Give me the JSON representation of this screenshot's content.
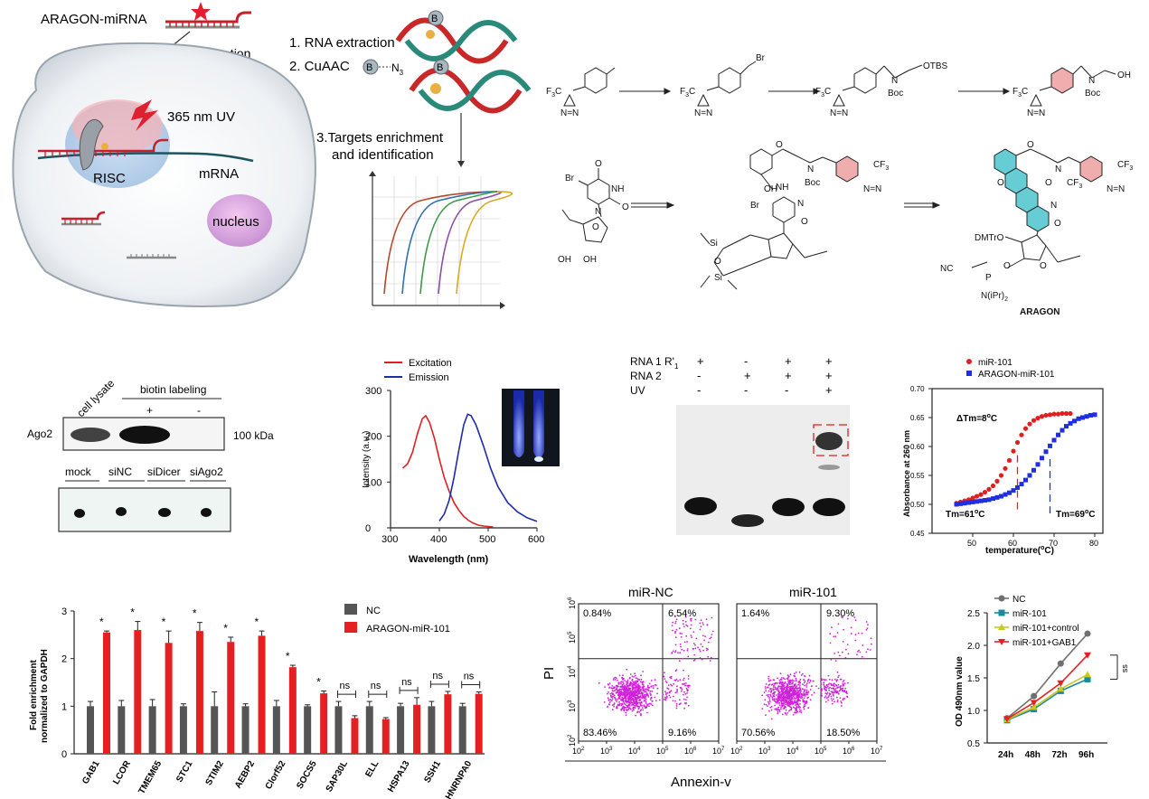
{
  "schematic": {
    "miRNA_label": "ARAGON-miRNA",
    "transfection": "transfection",
    "uv": "365 nm UV",
    "risc": "RISC",
    "mrna": "mRNA",
    "nucleus": "nucleus",
    "biotin_badge": "B",
    "step1": "1. RNA extraction",
    "step2": "2. CuAAC",
    "azide": "N",
    "azide_sub": "3",
    "step3a": "3.Targets enrichment",
    "step3b": "and identification",
    "curve_colors": [
      "#b5482a",
      "#2f6fb0",
      "#3c9a4a",
      "#8a4fa0",
      "#d9a821"
    ]
  },
  "chemistry": {
    "f3c": "F",
    "f3c_sub": "3",
    "f3c_c": "C",
    "cf": "CF",
    "cf_sub": "3",
    "br": "Br",
    "otbs": "OTBS",
    "boc": "Boc",
    "oh": "OH",
    "nh": "NH",
    "n": "N",
    "o": "O",
    "si": "Si",
    "dmtro": "DMTrO",
    "nc": "NC",
    "p": "P",
    "niPr": "N(iPr)",
    "niPr_sub": "2",
    "final_label": "ARAGON",
    "highlight_pink": "#e88a8a",
    "highlight_cyan": "#3fc0c8"
  },
  "blot": {
    "lane_cell_lysate": "cell lysate",
    "biotin_labeling": "biotin labeling",
    "plus": "+",
    "minus": "-",
    "ago2": "Ago2",
    "kda": "100 kDa",
    "lanes2": [
      "mock",
      "siNC",
      "siDicer",
      "siAgo2"
    ]
  },
  "spectra": {
    "chart_data": {
      "type": "line",
      "xlabel": "Wavelength (nm)",
      "ylabel": "Intensity (a.u.)",
      "xlim": [
        300,
        600
      ],
      "ylim": [
        0,
        300
      ],
      "xticks": [
        300,
        400,
        500,
        600
      ],
      "yticks": [
        0,
        100,
        200,
        300
      ],
      "legend": "top-left",
      "series": [
        {
          "name": "Excitation",
          "color": "#e02020",
          "x": [
            325,
            335,
            345,
            355,
            365,
            372,
            380,
            390,
            400,
            410,
            420,
            430,
            440,
            450,
            460,
            470,
            480,
            490,
            500,
            510
          ],
          "y": [
            130,
            140,
            165,
            205,
            238,
            245,
            230,
            195,
            150,
            110,
            80,
            55,
            38,
            25,
            16,
            10,
            6,
            4,
            3,
            2
          ]
        },
        {
          "name": "Emission",
          "color": "#1e2ea8",
          "x": [
            400,
            410,
            420,
            430,
            440,
            450,
            458,
            465,
            475,
            490,
            505,
            520,
            540,
            560,
            580,
            600
          ],
          "y": [
            15,
            30,
            60,
            110,
            170,
            225,
            248,
            245,
            225,
            180,
            130,
            90,
            55,
            35,
            22,
            14
          ]
        }
      ]
    }
  },
  "gel": {
    "rows": [
      {
        "label": "RNA 1 R'",
        "sub": "1",
        "vals": [
          "+",
          "-",
          "+",
          "+"
        ]
      },
      {
        "label": "RNA 2",
        "sub": "",
        "vals": [
          "-",
          "+",
          "+",
          "+"
        ]
      },
      {
        "label": "UV",
        "sub": "",
        "vals": [
          "-",
          "-",
          "-",
          "+"
        ]
      }
    ]
  },
  "melting": {
    "chart_data": {
      "type": "scatter",
      "xlabel": "temperature(",
      "xlabel_sup": "o",
      "xlabel_end": "C)",
      "ylabel": "Absorbance at 260 nm",
      "xlim": [
        40,
        82
      ],
      "ylim": [
        0.45,
        0.7
      ],
      "xticks": [
        50,
        60,
        70,
        80
      ],
      "yticks": [
        "0.45",
        "0.50",
        "0.55",
        "0.60",
        "0.65",
        "0.70"
      ],
      "legend": "top",
      "series": [
        {
          "name": "miR-101",
          "color": "#e02020",
          "tm": 61,
          "x": [
            46,
            47,
            48,
            49,
            50,
            51,
            52,
            53,
            54,
            55,
            56,
            57,
            58,
            59,
            60,
            61,
            62,
            63,
            64,
            65,
            66,
            67,
            68,
            69,
            70,
            71,
            72,
            73,
            74
          ],
          "y": [
            0.502,
            0.504,
            0.506,
            0.508,
            0.511,
            0.514,
            0.517,
            0.521,
            0.526,
            0.532,
            0.54,
            0.55,
            0.562,
            0.576,
            0.592,
            0.607,
            0.62,
            0.631,
            0.639,
            0.645,
            0.649,
            0.652,
            0.654,
            0.655,
            0.656,
            0.656,
            0.657,
            0.657,
            0.657
          ]
        },
        {
          "name": "ARAGON-miR-101",
          "color": "#1e2ee0",
          "tm": 69,
          "x": [
            46,
            47,
            48,
            49,
            50,
            51,
            52,
            53,
            54,
            55,
            56,
            57,
            58,
            59,
            60,
            61,
            62,
            63,
            64,
            65,
            66,
            67,
            68,
            69,
            70,
            71,
            72,
            73,
            74,
            75,
            76,
            77,
            78,
            79,
            80
          ],
          "y": [
            0.5,
            0.501,
            0.502,
            0.503,
            0.504,
            0.505,
            0.506,
            0.507,
            0.508,
            0.51,
            0.512,
            0.514,
            0.517,
            0.52,
            0.524,
            0.529,
            0.535,
            0.542,
            0.55,
            0.559,
            0.569,
            0.58,
            0.591,
            0.601,
            0.611,
            0.62,
            0.628,
            0.635,
            0.64,
            0.644,
            0.648,
            0.65,
            0.652,
            0.654,
            0.655
          ]
        }
      ],
      "annotations": {
        "dtm": "ΔTm=8",
        "dtm_end": "C",
        "tm1": "Tm=61",
        "tm1_end": "C",
        "tm2": "Tm=69",
        "tm2_end": "C",
        "deg": "o"
      }
    }
  },
  "enrichment": {
    "chart_data": {
      "type": "bar",
      "ylabel": "Fold enrichment",
      "ylabel2": "normalized to GAPDH",
      "ylim": [
        0,
        3
      ],
      "yticks": [
        0,
        1,
        2,
        3
      ],
      "legend": "top-right",
      "categories": [
        "GAB1",
        "LCOR",
        "TMEM65",
        "STC1",
        "STIM2",
        "AEBP2",
        "Clorf52",
        "SOCS5",
        "SAP30L",
        "ELL",
        "HSPA13",
        "SSH1",
        "HNRNPA0"
      ],
      "series": [
        {
          "name": "NC",
          "color": "#555555",
          "values": [
            1.0,
            1.0,
            1.0,
            1.0,
            1.0,
            1.0,
            1.0,
            1.0,
            1.0,
            1.0,
            1.0,
            1.0,
            1.0
          ],
          "err": [
            0.1,
            0.12,
            0.14,
            0.05,
            0.3,
            0.05,
            0.12,
            0.03,
            0.1,
            0.1,
            0.06,
            0.1,
            0.06
          ]
        },
        {
          "name": "ARAGON-miR-101",
          "color": "#e62020",
          "values": [
            2.55,
            2.6,
            2.33,
            2.58,
            2.35,
            2.48,
            1.82,
            1.27,
            0.75,
            0.73,
            1.03,
            1.25,
            1.26
          ],
          "err": [
            0.03,
            0.18,
            0.25,
            0.18,
            0.1,
            0.1,
            0.04,
            0.05,
            0.05,
            0.03,
            0.15,
            0.06,
            0.04
          ]
        }
      ],
      "significance": [
        "*",
        "*",
        "*",
        "*",
        "*",
        "*",
        "*",
        "*",
        "ns",
        "ns",
        "ns",
        "ns",
        "ns"
      ]
    }
  },
  "flow": {
    "ylabel": "PI",
    "xlabel": "Annexin-v",
    "ticks": [
      "10",
      "10",
      "10",
      "10",
      "10",
      "10"
    ],
    "tick_exp": [
      "2",
      "3",
      "4",
      "5",
      "6",
      "7"
    ],
    "panels": [
      {
        "title": "miR-NC",
        "q": [
          "0.84%",
          "6.54%",
          "83.46%",
          "9.16%"
        ]
      },
      {
        "title": "miR-101",
        "q": [
          "1.64%",
          "9.30%",
          "70.56%",
          "18.50%"
        ]
      }
    ],
    "dot_color": "#d020d8"
  },
  "growth": {
    "chart_data": {
      "type": "line",
      "ylabel": "OD 490nm value",
      "categories": [
        "24h",
        "48h",
        "72h",
        "96h"
      ],
      "ylim": [
        0.5,
        2.5
      ],
      "yticks": [
        "0.5",
        "1.0",
        "1.5",
        "2.0",
        "2.5"
      ],
      "legend": "top-left",
      "series": [
        {
          "name": "NC",
          "color": "#707070",
          "marker": "circle",
          "values": [
            0.88,
            1.22,
            1.72,
            2.18
          ]
        },
        {
          "name": "miR-101",
          "color": "#1a8a9a",
          "marker": "square",
          "values": [
            0.85,
            1.02,
            1.3,
            1.48
          ]
        },
        {
          "name": "miR-101+control",
          "color": "#c8c820",
          "marker": "triangle",
          "values": [
            0.86,
            1.05,
            1.33,
            1.55
          ]
        },
        {
          "name": "miR-101+GAB1",
          "color": "#e62020",
          "marker": "triangle-down",
          "values": [
            0.87,
            1.12,
            1.42,
            1.85
          ]
        }
      ],
      "bracket": "ss"
    }
  }
}
